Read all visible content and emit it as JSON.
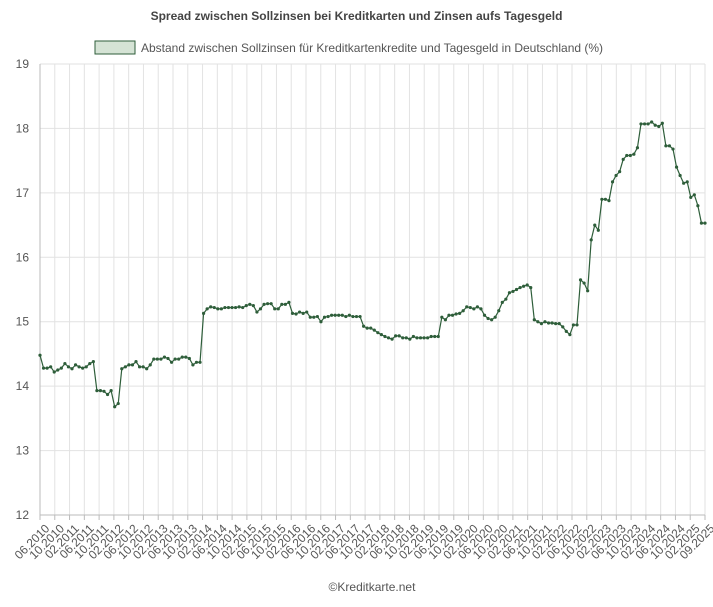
{
  "chart_data": {
    "type": "line",
    "title": "Spread zwischen Sollzinsen bei Kreditkarten und Zinsen aufs Tagesgeld",
    "legend": {
      "position": "top-center",
      "label": "Abstand zwischen Sollzinsen für Kreditkartenkredite und Tagesgeld in Deutschland (%)"
    },
    "credit": "©Kreditkarte.net",
    "ylim": [
      12,
      19
    ],
    "yticks": [
      "12",
      "13",
      "14",
      "15",
      "16",
      "17",
      "18",
      "19"
    ],
    "grid": true,
    "x_tick_labels": [
      "06.2010",
      "10.2010",
      "02.2011",
      "06.2011",
      "10.2011",
      "02.2012",
      "06.2012",
      "10.2012",
      "02.2013",
      "06.2013",
      "10.2013",
      "02.2014",
      "06.2014",
      "10.2014",
      "02.2015",
      "06.2015",
      "10.2015",
      "02.2016",
      "06.2016",
      "10.2016",
      "02.2017",
      "06.2017",
      "10.2017",
      "02.2018",
      "06.2018",
      "10.2018",
      "02.2019",
      "06.2019",
      "10.2019",
      "02.2020",
      "06.2020",
      "10.2020",
      "02.2021",
      "06.2021",
      "10.2021",
      "02.2022",
      "06.2022",
      "10.2022",
      "02.2023",
      "06.2023",
      "10.2023",
      "02.2024",
      "06.2024",
      "10.2024",
      "02.2025",
      "09.2025"
    ],
    "colors": {
      "line": "#2e5e3a",
      "legend_fill": "#d5e3d5",
      "grid": "#e2e2e2",
      "axis": "#bbbbbb"
    },
    "series": [
      {
        "values": [
          14.48,
          14.28,
          14.28,
          14.3,
          14.22,
          14.25,
          14.28,
          14.35,
          14.3,
          14.27,
          14.33,
          14.3,
          14.28,
          14.3,
          14.35,
          14.38,
          13.93,
          13.93,
          13.92,
          13.87,
          13.93,
          13.68,
          13.73,
          14.27,
          14.3,
          14.33,
          14.33,
          14.38,
          14.3,
          14.3,
          14.27,
          14.33,
          14.42,
          14.42,
          14.42,
          14.45,
          14.43,
          14.37,
          14.42,
          14.42,
          14.45,
          14.45,
          14.43,
          14.33,
          14.37,
          14.37,
          15.13,
          15.2,
          15.23,
          15.22,
          15.2,
          15.2,
          15.22,
          15.22,
          15.22,
          15.22,
          15.23,
          15.22,
          15.25,
          15.27,
          15.25,
          15.15,
          15.2,
          15.27,
          15.28,
          15.28,
          15.2,
          15.2,
          15.27,
          15.27,
          15.3,
          15.13,
          15.12,
          15.15,
          15.13,
          15.15,
          15.07,
          15.07,
          15.08,
          15.0,
          15.07,
          15.08,
          15.1,
          15.1,
          15.1,
          15.1,
          15.08,
          15.1,
          15.08,
          15.08,
          15.08,
          14.93,
          14.9,
          14.9,
          14.87,
          14.83,
          14.8,
          14.77,
          14.75,
          14.73,
          14.78,
          14.78,
          14.75,
          14.75,
          14.73,
          14.77,
          14.75,
          14.75,
          14.75,
          14.75,
          14.77,
          14.77,
          14.77,
          15.07,
          15.03,
          15.1,
          15.1,
          15.12,
          15.13,
          15.17,
          15.23,
          15.22,
          15.2,
          15.23,
          15.2,
          15.1,
          15.05,
          15.03,
          15.07,
          15.17,
          15.3,
          15.35,
          15.45,
          15.47,
          15.5,
          15.53,
          15.55,
          15.57,
          15.53,
          15.03,
          15.0,
          14.97,
          15.0,
          14.98,
          14.98,
          14.97,
          14.97,
          14.92,
          14.85,
          14.8,
          14.95,
          14.95,
          15.65,
          15.6,
          15.48,
          16.27,
          16.5,
          16.42,
          16.9,
          16.9,
          16.88,
          17.17,
          17.27,
          17.33,
          17.52,
          17.58,
          17.58,
          17.6,
          17.7,
          18.07,
          18.07,
          18.07,
          18.1,
          18.05,
          18.03,
          18.08,
          17.73,
          17.73,
          17.68,
          17.4,
          17.27,
          17.15,
          17.17,
          16.93,
          16.97,
          16.8,
          16.53,
          16.53
        ]
      }
    ]
  }
}
